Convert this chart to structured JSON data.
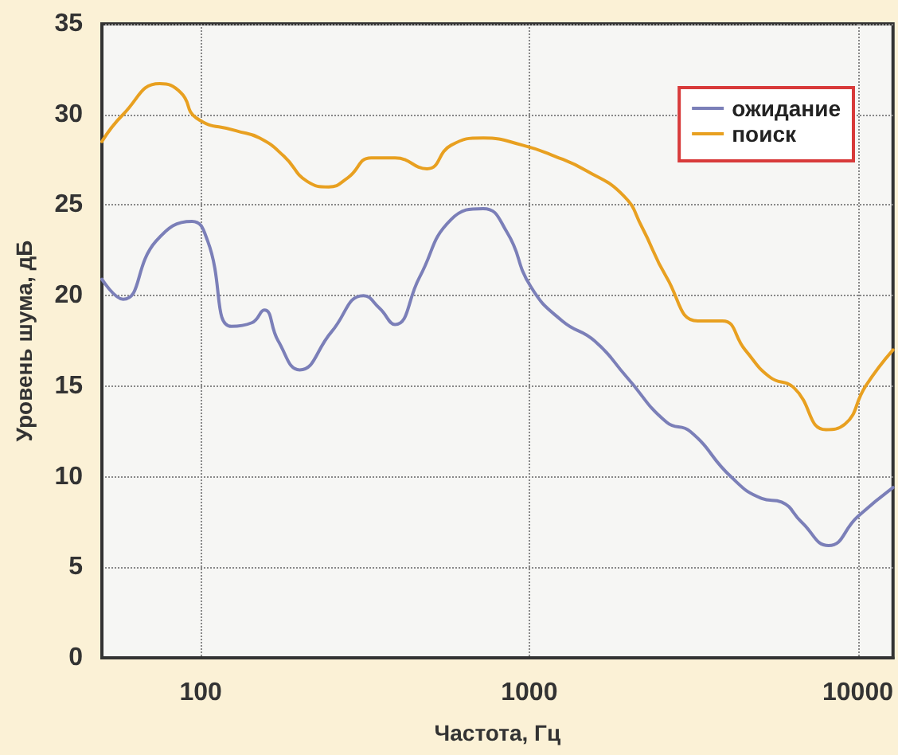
{
  "chart_data": {
    "type": "line",
    "xlabel": "Частота, Гц",
    "ylabel": "Уровень шума, дБ",
    "log": "x",
    "xlim": [
      50,
      12800
    ],
    "xticks": [
      100,
      1000,
      10000
    ],
    "ylim": [
      0,
      35
    ],
    "yticks": [
      0,
      5,
      10,
      15,
      20,
      25,
      30,
      35
    ],
    "grid": true,
    "legend": "top right",
    "marker": "none",
    "line_style": "solid",
    "series": [
      {
        "name": "ожидание",
        "color": "#7b7fb8",
        "x": [
          50,
          58,
          73,
          94,
          105,
          124,
          143,
          156,
          172,
          200,
          250,
          313,
          350,
          390,
          463,
          578,
          724,
          855,
          1010,
          1260,
          1580,
          1980,
          2620,
          3090,
          4110,
          5100,
          5860,
          6740,
          8150,
          10000,
          12800
        ],
        "values": [
          20.9,
          19.8,
          23,
          24.1,
          23,
          18.3,
          18.5,
          19.2,
          17.5,
          15.9,
          18,
          20,
          19.3,
          18.4,
          21,
          24.2,
          24.8,
          23.5,
          20.5,
          18.6,
          17.5,
          15.5,
          13,
          12.5,
          10,
          8.8,
          8.6,
          7.5,
          6.2,
          7.8,
          9.4
        ]
      },
      {
        "name": "поиск",
        "color": "#e8a020",
        "x": [
          50,
          58,
          75,
          87,
          97,
          128,
          151,
          179,
          211,
          245,
          280,
          330,
          390,
          488,
          578,
          724,
          955,
          1194,
          1490,
          1940,
          2200,
          2620,
          3260,
          3870,
          4540,
          5400,
          6400,
          8000,
          9140,
          10560,
          12800
        ],
        "values": [
          28.5,
          30,
          31.7,
          31.2,
          29.8,
          29.1,
          28.7,
          27.7,
          26.3,
          26,
          26.5,
          27.6,
          27.6,
          27,
          28.3,
          28.7,
          28.3,
          27.7,
          26.9,
          25.5,
          23.8,
          21,
          18.6,
          18.6,
          17,
          15.5,
          14.9,
          12.6,
          12.9,
          15,
          17
        ]
      }
    ]
  }
}
